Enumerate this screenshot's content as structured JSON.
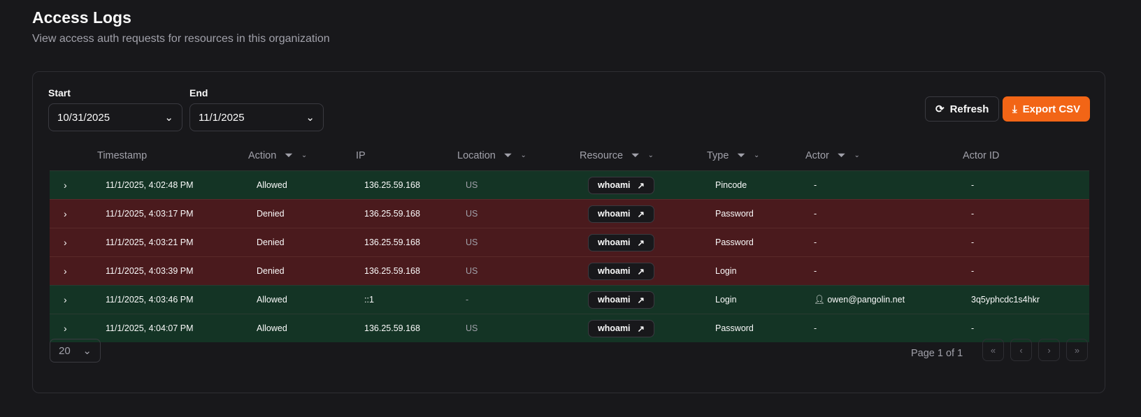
{
  "header": {
    "title": "Access Logs",
    "subtitle": "View access auth requests for resources in this organization"
  },
  "filters": {
    "start_label": "Start",
    "start_value": "10/31/2025",
    "end_label": "End",
    "end_value": "11/1/2025"
  },
  "toolbar": {
    "refresh_label": "Refresh",
    "export_label": "Export CSV",
    "accent": "#f26516"
  },
  "columns": [
    "Timestamp",
    "Action",
    "IP",
    "Location",
    "Resource",
    "Type",
    "Actor",
    "Actor ID"
  ],
  "rows": [
    {
      "timestamp": "11/1/2025, 4:02:48 PM",
      "action": "Allowed",
      "ip": "136.25.59.168",
      "location": "US",
      "resource": "whoami",
      "type": "Pincode",
      "actor": "-",
      "actor_id": "-"
    },
    {
      "timestamp": "11/1/2025, 4:03:17 PM",
      "action": "Denied",
      "ip": "136.25.59.168",
      "location": "US",
      "resource": "whoami",
      "type": "Password",
      "actor": "-",
      "actor_id": "-"
    },
    {
      "timestamp": "11/1/2025, 4:03:21 PM",
      "action": "Denied",
      "ip": "136.25.59.168",
      "location": "US",
      "resource": "whoami",
      "type": "Password",
      "actor": "-",
      "actor_id": "-"
    },
    {
      "timestamp": "11/1/2025, 4:03:39 PM",
      "action": "Denied",
      "ip": "136.25.59.168",
      "location": "US",
      "resource": "whoami",
      "type": "Login",
      "actor": "-",
      "actor_id": "-"
    },
    {
      "timestamp": "11/1/2025, 4:03:46 PM",
      "action": "Allowed",
      "ip": "::1",
      "location": "-",
      "resource": "whoami",
      "type": "Login",
      "actor": "owen@pangolin.net",
      "actor_id": "3q5yphcdc1s4hkr"
    },
    {
      "timestamp": "11/1/2025, 4:04:07 PM",
      "action": "Allowed",
      "ip": "136.25.59.168",
      "location": "US",
      "resource": "whoami",
      "type": "Password",
      "actor": "-",
      "actor_id": "-"
    }
  ],
  "pagination": {
    "page_size": "20",
    "page_text": "Page 1 of 1"
  }
}
